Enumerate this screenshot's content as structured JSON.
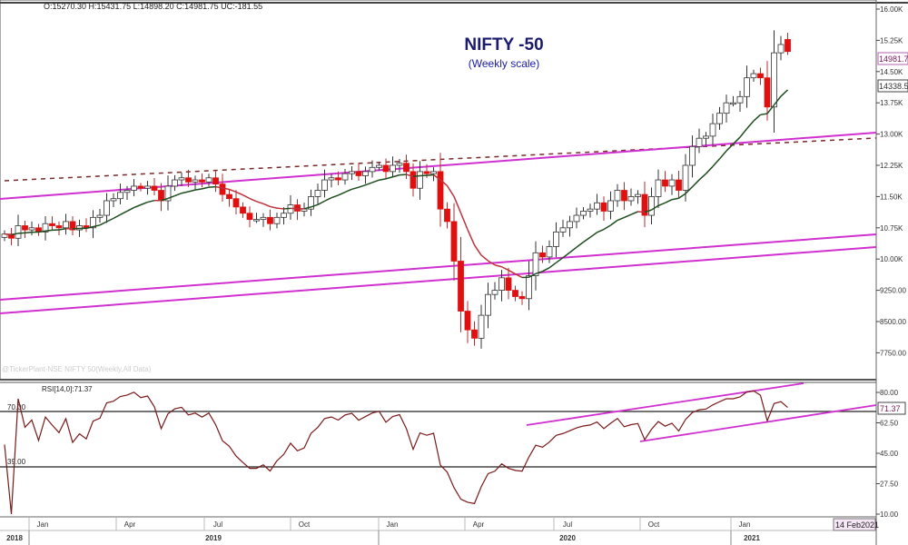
{
  "header": {
    "ohlc_readout": "O:15270.30  H:15431.75  L:14898.20  C:14981.75  UC:-181.55"
  },
  "title": "NIFTY -50",
  "subtitle": "(Weekly scale)",
  "watermark": "@TickerPlant-NSE NIFTY 50(Weekly,All Data)",
  "colors": {
    "up": "#ffffff",
    "down": "#e01010",
    "ma_up": "#1e4d1e",
    "ma_down": "#c0303a",
    "channel": "#d030d0",
    "dashed": "#7a2a2a",
    "rsi": "#7a1a1a",
    "title": "#1a1a6e",
    "subtitle": "#1a1aa8"
  },
  "chart_data": [
    {
      "type": "candlestick",
      "title": "NIFTY -50",
      "subtitle": "(Weekly scale)",
      "interval": "weekly",
      "y_ticks": [
        "16.00K",
        "15.25K",
        "14.50K",
        "13.75K",
        "13.00K",
        "12.25K",
        "11.50K",
        "10.75K",
        "10.00K",
        "9250.00",
        "8500.00",
        "7750.00"
      ],
      "ylim": [
        7200,
        16200
      ],
      "last_bar": {
        "open": 15270.3,
        "high": 15431.75,
        "low": 14898.2,
        "close": 14981.75
      },
      "close": [
        10600,
        10500,
        10800,
        10700,
        10750,
        10650,
        10850,
        10800,
        10750,
        10900,
        10700,
        10800,
        10750,
        11000,
        11050,
        11400,
        11450,
        11600,
        11650,
        11750,
        11700,
        11750,
        11650,
        11400,
        11750,
        11900,
        11950,
        11850,
        11900,
        11850,
        11950,
        11800,
        11550,
        11450,
        11250,
        11100,
        10950,
        10950,
        11000,
        10850,
        11000,
        11100,
        11300,
        11150,
        11200,
        11500,
        11650,
        11900,
        11950,
        11900,
        12050,
        12100,
        12000,
        12100,
        12200,
        12250,
        12100,
        12250,
        12300,
        12100,
        11700,
        12100,
        12050,
        12100,
        11200,
        10900,
        9950,
        8750,
        8300,
        8100,
        8650,
        9150,
        9250,
        9550,
        9250,
        9100,
        9050,
        9600,
        10150,
        10050,
        10300,
        10650,
        10750,
        10900,
        11050,
        11150,
        11200,
        11350,
        11150,
        11400,
        11650,
        11400,
        11500,
        11550,
        11050,
        11500,
        11900,
        11750,
        11900,
        11650,
        12250,
        12700,
        12900,
        12950,
        13250,
        13500,
        13750,
        13750,
        13900,
        14350,
        14450,
        14350,
        13650,
        14950,
        15150,
        14981.75
      ],
      "price_labels": [
        {
          "label": "14981.7",
          "value": 14981.75
        },
        {
          "label": "14338.5",
          "value": 14338.5
        }
      ],
      "x_month_labels": [
        "Jan",
        "Apr",
        "Jul",
        "Oct",
        "Jan",
        "Apr",
        "Jul",
        "Oct",
        "Jan"
      ],
      "x_year_labels": [
        "2018",
        "2019",
        "2020",
        "2021"
      ],
      "date_label": "14 Feb2021"
    },
    {
      "type": "line",
      "label": "RSI[14,0]:71.37",
      "last_value": "71.37",
      "y_ticks": [
        "80.00",
        "62.50",
        "45.00",
        "27.50",
        "10.00"
      ],
      "ylim": [
        10,
        85
      ],
      "reference_lines": [
        {
          "value": 70,
          "label": "70.00"
        },
        {
          "value": 39,
          "label": "39.00"
        }
      ]
    }
  ]
}
